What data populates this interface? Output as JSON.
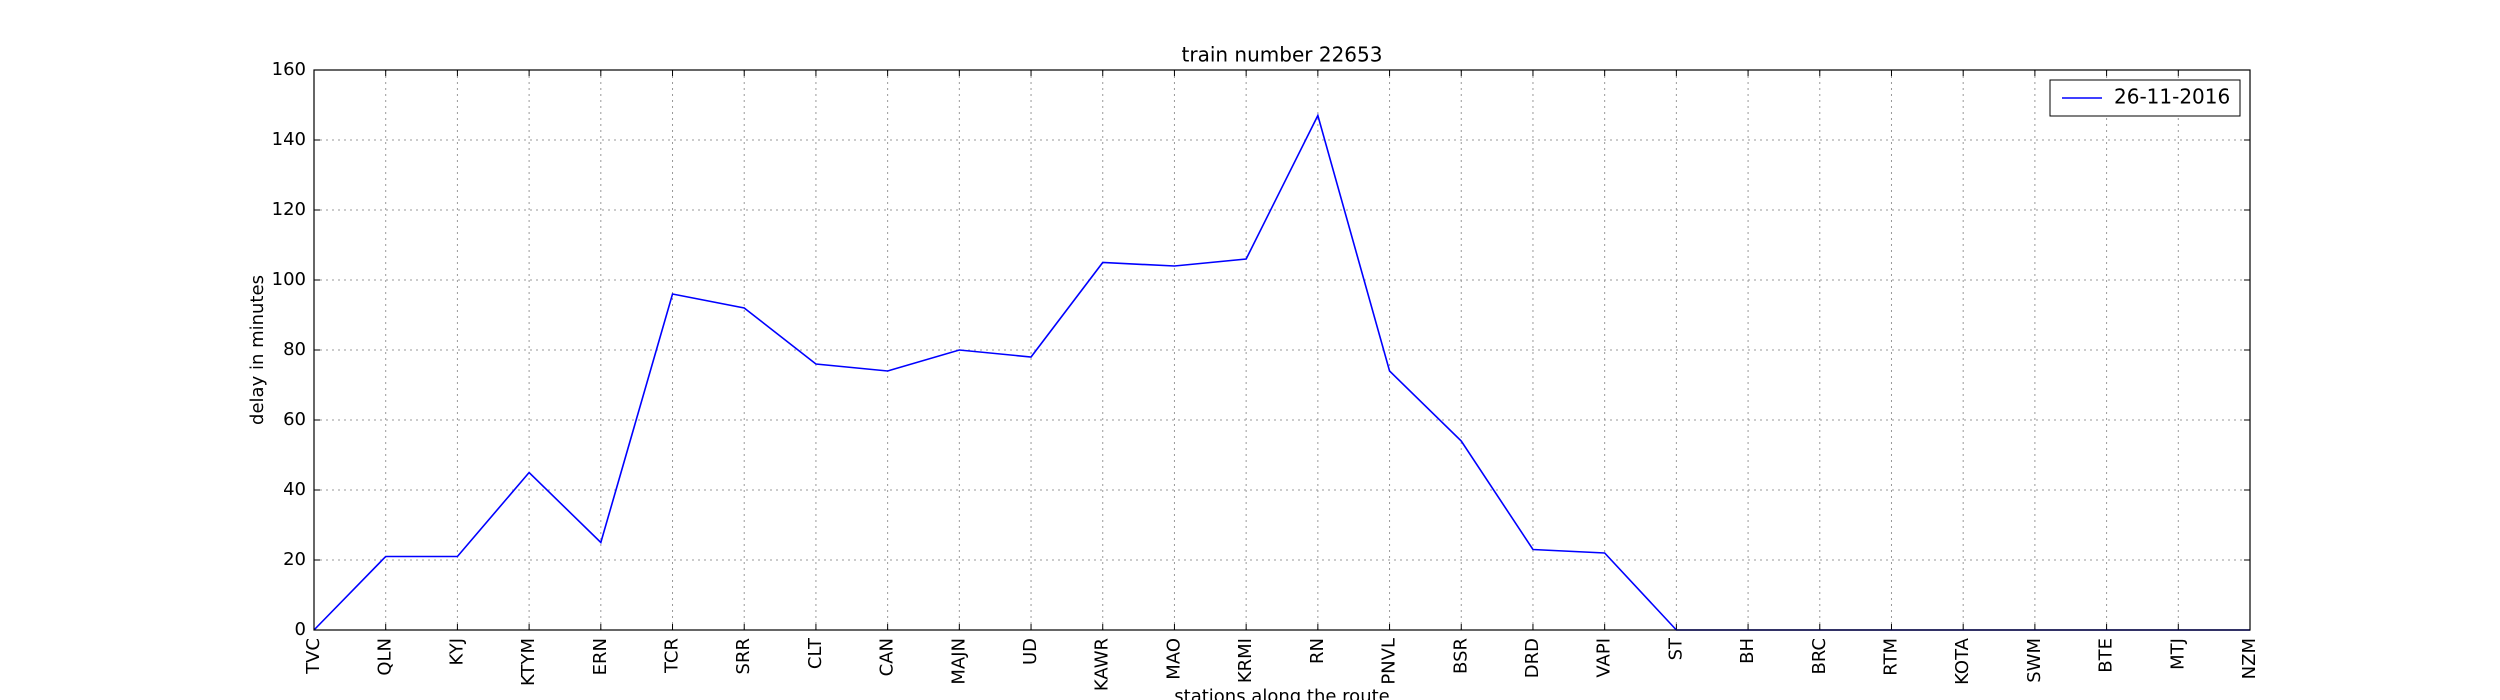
{
  "chart_data": {
    "type": "line",
    "title": "train number 22653",
    "xlabel": "stations along the route",
    "ylabel": "delay in minutes",
    "categories": [
      "TVC",
      "QLN",
      "KYJ",
      "KTYM",
      "ERN",
      "TCR",
      "SRR",
      "CLT",
      "CAN",
      "MAJN",
      "UD",
      "KAWR",
      "MAO",
      "KRMI",
      "RN",
      "PNVL",
      "BSR",
      "DRD",
      "VAPI",
      "ST",
      "BH",
      "BRC",
      "RTM",
      "KOTA",
      "SWM",
      "BTE",
      "MTJ",
      "NZM"
    ],
    "series": [
      {
        "name": "26-11-2016",
        "color": "#0000ff",
        "values": [
          0,
          21,
          21,
          45,
          25,
          96,
          92,
          76,
          74,
          80,
          78,
          105,
          104,
          106,
          147,
          74,
          54,
          23,
          22,
          0,
          0,
          0,
          0,
          0,
          0,
          0,
          0,
          0
        ]
      }
    ],
    "ylim": [
      0,
      160
    ],
    "yticks": [
      0,
      20,
      40,
      60,
      80,
      100,
      120,
      140,
      160
    ],
    "grid": true,
    "legend": "upper right"
  }
}
